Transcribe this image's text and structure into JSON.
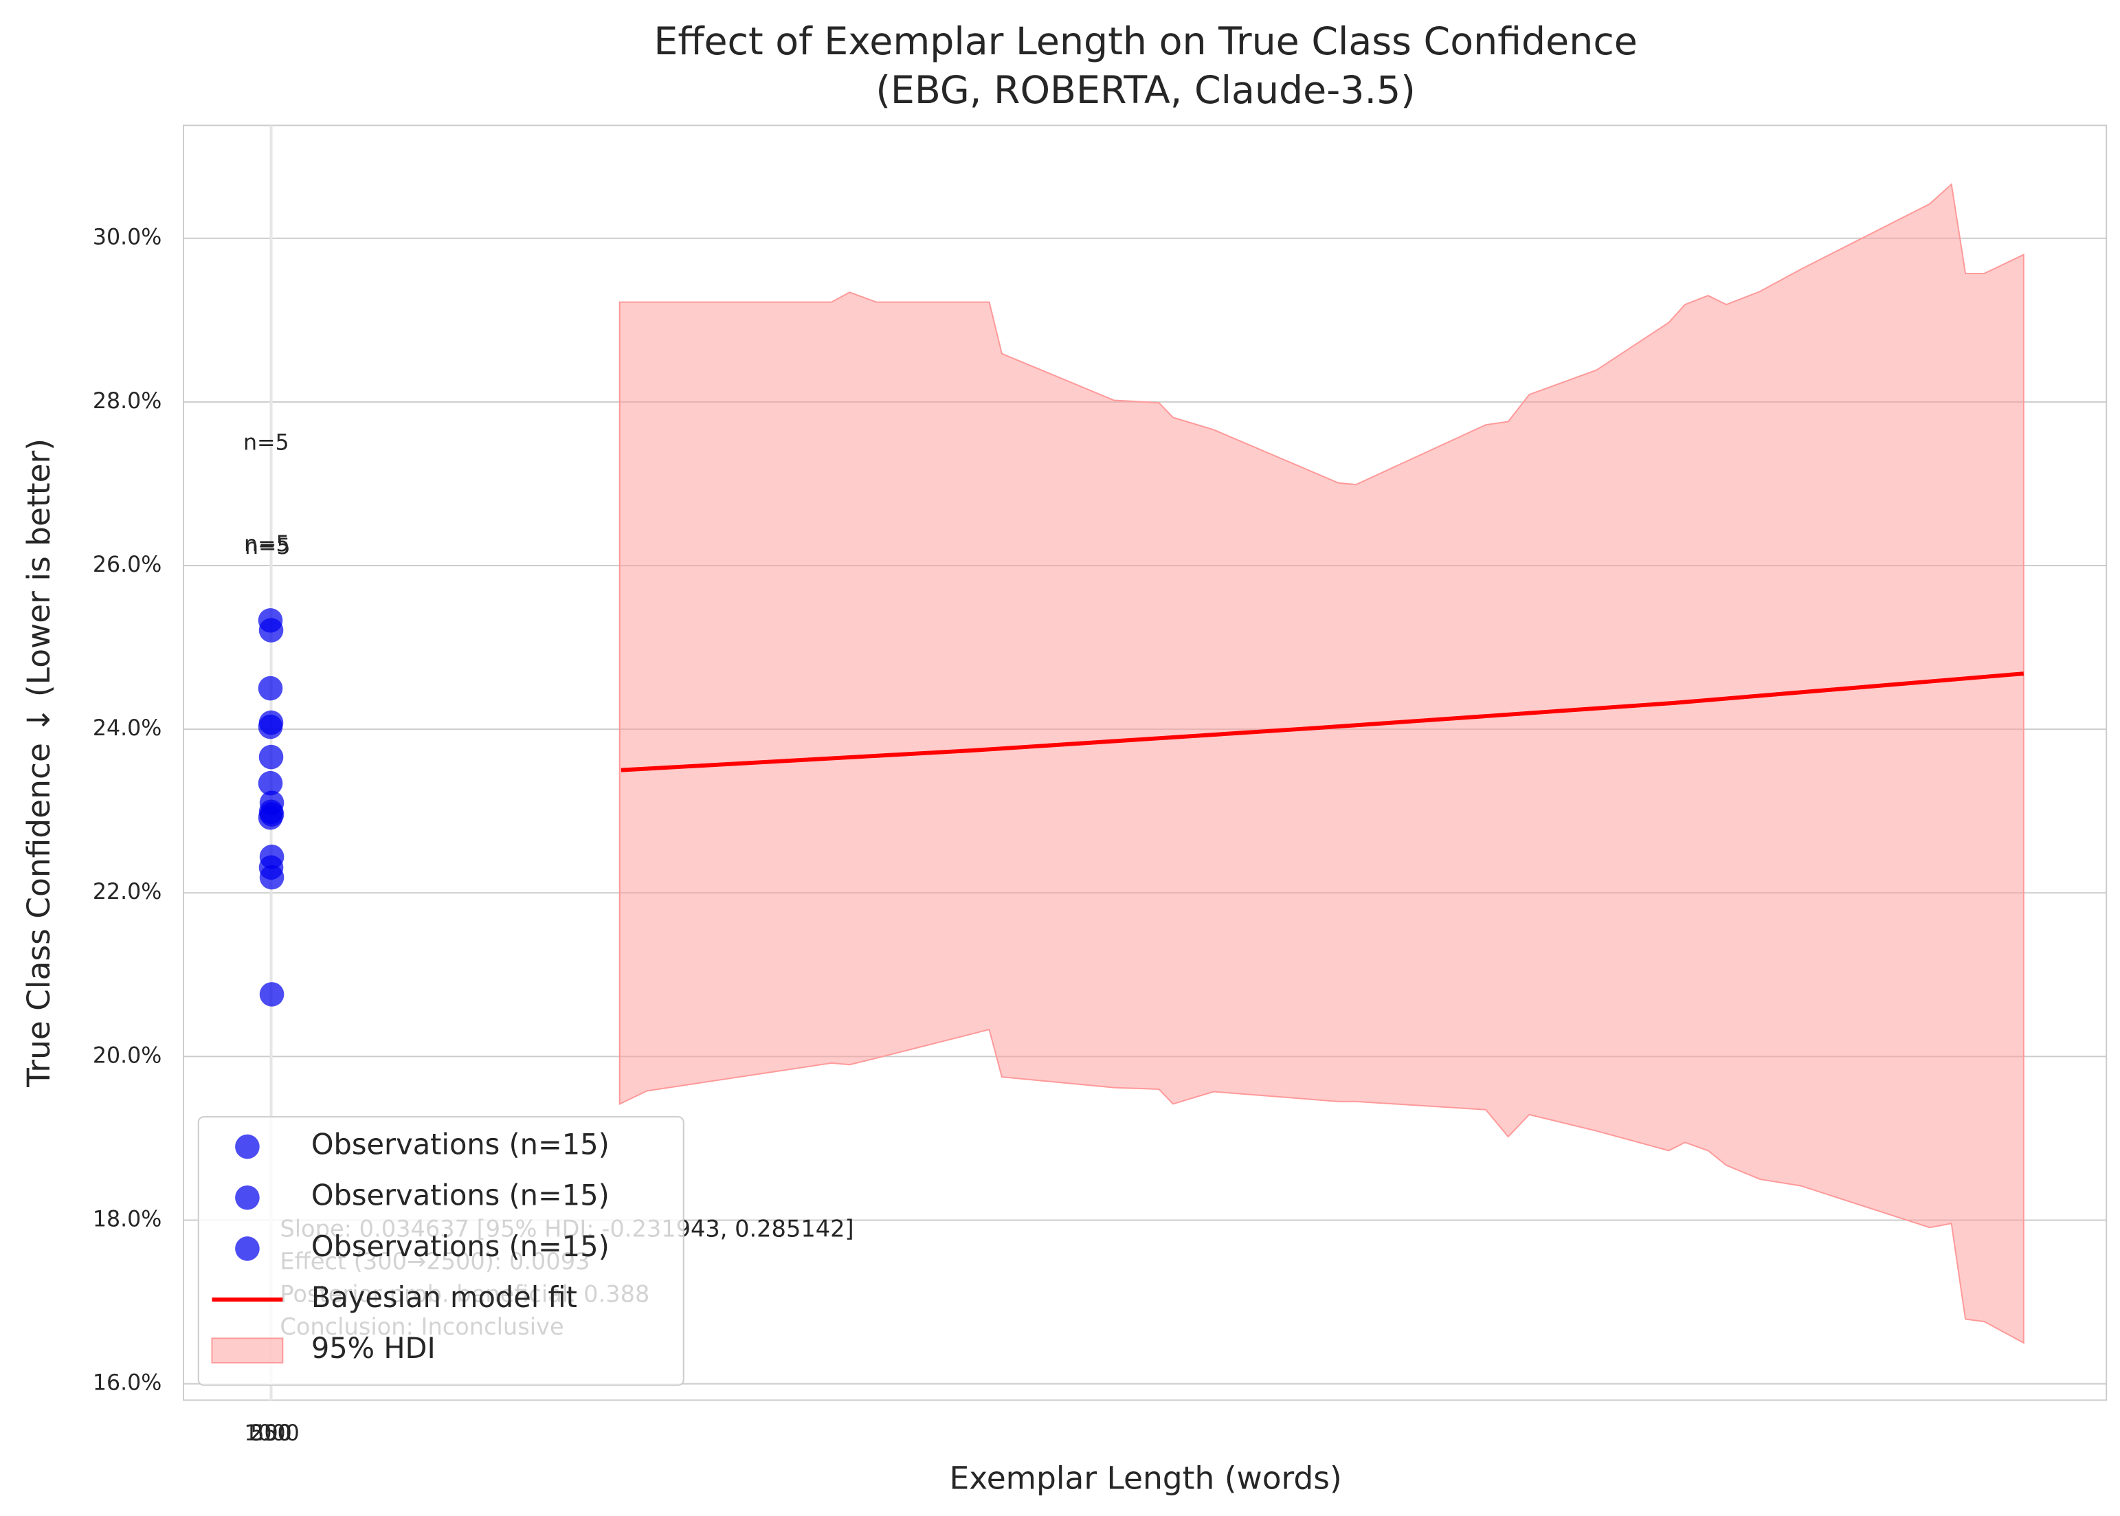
{
  "chart_data": {
    "type": "scatter",
    "title": [
      "Effect of Exemplar Length on True Class Confidence",
      "(EBG, ROBERTA, Claude-3.5)"
    ],
    "xlabel": "Exemplar Length (words)",
    "ylabel": "True Class Confidence ↓ (Lower is better)",
    "xlim": [
      -124,
      2618
    ],
    "ylim": [
      15.8,
      31.38
    ],
    "xticks": [
      {
        "value": 0,
        "label": "250"
      },
      {
        "value": 1,
        "label": "500"
      },
      {
        "value": 2,
        "label": "1000"
      }
    ],
    "yticks": [
      {
        "value": 16,
        "label": "16.0%"
      },
      {
        "value": 18,
        "label": "18.0%"
      },
      {
        "value": 20,
        "label": "20.0%"
      },
      {
        "value": 22,
        "label": "22.0%"
      },
      {
        "value": 24,
        "label": "24.0%"
      },
      {
        "value": 26,
        "label": "26.0%"
      },
      {
        "value": 28,
        "label": "28.0%"
      },
      {
        "value": 30,
        "label": "30.0%"
      }
    ],
    "grid": true,
    "legend": "lower left",
    "series": [
      {
        "name": "Observations (n=15)",
        "color": "#0000ee",
        "x": [
          0,
          0,
          0,
          0,
          0
        ],
        "values": [
          25.33,
          24.5,
          24.03,
          23.34,
          22.92
        ]
      },
      {
        "name": "Observations (n=15)",
        "color": "#0000ee",
        "x": [
          1,
          1,
          1,
          1,
          1
        ],
        "values": [
          25.21,
          24.08,
          23.66,
          22.99,
          22.31
        ]
      },
      {
        "name": "Observations (n=15)",
        "color": "#0000ee",
        "x": [
          2,
          2,
          2,
          2,
          2
        ],
        "values": [
          23.1,
          22.96,
          22.44,
          22.19,
          20.76
        ]
      }
    ],
    "fit": {
      "name": "Bayesian model fit",
      "color": "#ff0000",
      "x": [
        500,
        1000,
        1500,
        2000,
        2500
      ],
      "values": [
        23.5,
        23.74,
        24.02,
        24.32,
        24.68
      ]
    },
    "band": {
      "name": "95% HDI",
      "color": "#ff9999",
      "x": [
        498,
        537,
        800,
        826,
        864,
        1025,
        1043,
        1203,
        1267,
        1287,
        1345,
        1523,
        1548,
        1733,
        1765,
        1795,
        1891,
        1994,
        2017,
        2050,
        2076,
        2124,
        2182,
        2366,
        2397,
        2417,
        2444,
        2500
      ],
      "upper": [
        29.22,
        29.22,
        29.22,
        29.34,
        29.22,
        29.22,
        28.59,
        28.02,
        27.99,
        27.81,
        27.66,
        27.01,
        26.99,
        27.72,
        27.76,
        28.09,
        28.39,
        28.97,
        29.19,
        29.3,
        29.19,
        29.35,
        29.62,
        30.42,
        30.66,
        29.57,
        29.57,
        29.8
      ],
      "lower": [
        19.42,
        19.58,
        19.92,
        19.9,
        19.98,
        20.33,
        19.75,
        19.62,
        19.6,
        19.42,
        19.57,
        19.45,
        19.45,
        19.35,
        19.02,
        19.29,
        19.09,
        18.85,
        18.95,
        18.85,
        18.67,
        18.5,
        18.42,
        17.91,
        17.96,
        16.79,
        16.76,
        16.5
      ]
    },
    "annotations": [
      {
        "text": "n=5",
        "x": 0,
        "y": 27.49
      },
      {
        "text": "n=5",
        "x": 1,
        "y": 26.25
      },
      {
        "text": "n=5",
        "x": 2,
        "y": 26.22
      }
    ],
    "stats": [
      "Slope: 0.034637 [95% HDI: -0.231943, 0.285142]",
      "Effect (300→2500): 0.0093",
      "Posterior prob. beneficial: 0.388",
      "Conclusion: Inconclusive"
    ]
  }
}
